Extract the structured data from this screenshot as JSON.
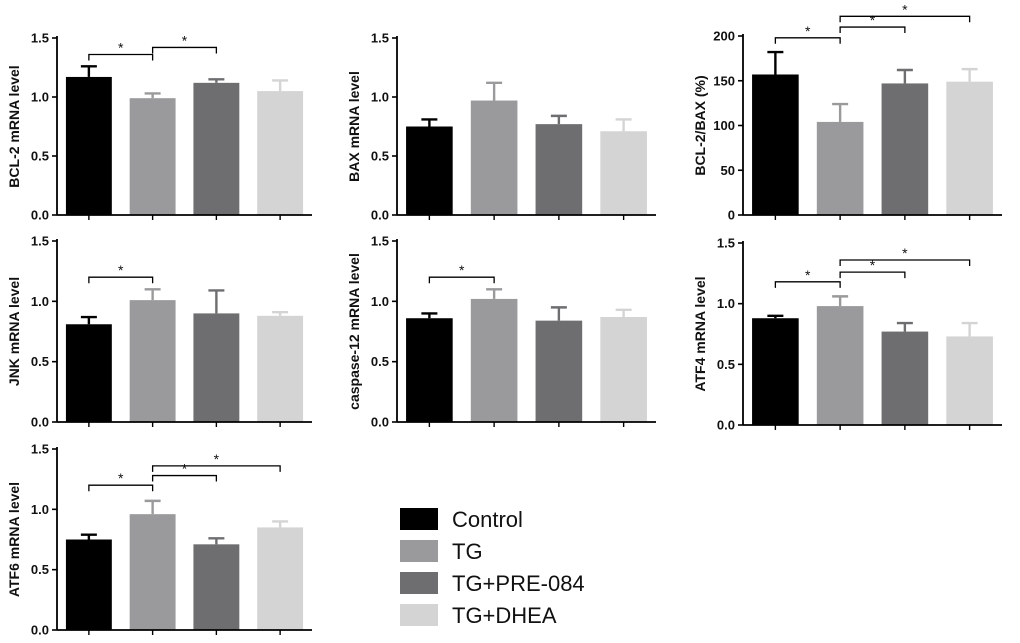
{
  "groups": [
    {
      "name": "Control",
      "color": "#000000"
    },
    {
      "name": "TG",
      "color": "#9a9a9c"
    },
    {
      "name": "TG+PRE-084",
      "color": "#6e6e70"
    },
    {
      "name": "TG+DHEA",
      "color": "#d4d4d4"
    }
  ],
  "chart_data": [
    {
      "type": "bar",
      "ylabel": "BCL-2 mRNA level",
      "ylim": [
        0,
        1.5
      ],
      "yticks": [
        "0.0",
        "0.5",
        "1.0",
        "1.5"
      ],
      "series": [
        {
          "values": [
            1.17,
            0.99,
            1.12,
            1.05
          ],
          "errors": [
            0.09,
            0.04,
            0.03,
            0.09
          ]
        }
      ],
      "significance": [
        {
          "from": 0,
          "to": 1,
          "label": "*",
          "level": 1.36
        },
        {
          "from": 1,
          "to": 2,
          "label": "*",
          "level": 1.42
        }
      ]
    },
    {
      "type": "bar",
      "ylabel": "BAX mRNA level",
      "ylim": [
        0,
        1.5
      ],
      "yticks": [
        "0.0",
        "0.5",
        "1.0",
        "1.5"
      ],
      "series": [
        {
          "values": [
            0.75,
            0.97,
            0.77,
            0.71
          ],
          "errors": [
            0.06,
            0.15,
            0.07,
            0.1
          ]
        }
      ],
      "significance": []
    },
    {
      "type": "bar",
      "ylabel": "BCL-2/BAX (%)",
      "ylim": [
        0,
        200
      ],
      "yticks": [
        "0",
        "50",
        "100",
        "150",
        "200"
      ],
      "series": [
        {
          "values": [
            157,
            104,
            147,
            149
          ],
          "errors": [
            25,
            20,
            15,
            14
          ]
        }
      ],
      "significance": [
        {
          "from": 0,
          "to": 1,
          "label": "*",
          "level": 198
        },
        {
          "from": 1,
          "to": 2,
          "label": "*",
          "level": 210
        },
        {
          "from": 1,
          "to": 3,
          "label": "*",
          "level": 222
        }
      ]
    },
    {
      "type": "bar",
      "ylabel": "JNK mRNA level",
      "ylim": [
        0,
        1.5
      ],
      "yticks": [
        "0.0",
        "0.5",
        "1.0",
        "1.5"
      ],
      "series": [
        {
          "values": [
            0.81,
            1.01,
            0.9,
            0.88
          ],
          "errors": [
            0.06,
            0.09,
            0.19,
            0.03
          ]
        }
      ],
      "significance": [
        {
          "from": 0,
          "to": 1,
          "label": "*",
          "level": 1.2
        }
      ]
    },
    {
      "type": "bar",
      "ylabel": "caspase-12 mRNA level",
      "ylim": [
        0,
        1.5
      ],
      "yticks": [
        "0.0",
        "0.5",
        "1.0",
        "1.5"
      ],
      "series": [
        {
          "values": [
            0.86,
            1.02,
            0.84,
            0.87
          ],
          "errors": [
            0.04,
            0.08,
            0.11,
            0.06
          ]
        }
      ],
      "significance": [
        {
          "from": 0,
          "to": 1,
          "label": "*",
          "level": 1.2
        }
      ]
    },
    {
      "type": "bar",
      "ylabel": "ATF4 mRNA level",
      "ylim": [
        0,
        1.5
      ],
      "yticks": [
        "0.0",
        "0.5",
        "1.0",
        "1.5"
      ],
      "series": [
        {
          "values": [
            0.88,
            0.98,
            0.77,
            0.73
          ],
          "errors": [
            0.02,
            0.08,
            0.07,
            0.11
          ]
        }
      ],
      "significance": [
        {
          "from": 0,
          "to": 1,
          "label": "*",
          "level": 1.18
        },
        {
          "from": 1,
          "to": 2,
          "label": "*",
          "level": 1.26
        },
        {
          "from": 1,
          "to": 3,
          "label": "*",
          "level": 1.36
        }
      ]
    },
    {
      "type": "bar",
      "ylabel": "ATF6 mRNA level",
      "ylim": [
        0,
        1.5
      ],
      "yticks": [
        "0.0",
        "0.5",
        "1.0",
        "1.5"
      ],
      "series": [
        {
          "values": [
            0.75,
            0.96,
            0.71,
            0.85
          ],
          "errors": [
            0.04,
            0.11,
            0.05,
            0.05
          ]
        }
      ],
      "significance": [
        {
          "from": 0,
          "to": 1,
          "label": "*",
          "level": 1.2
        },
        {
          "from": 1,
          "to": 2,
          "label": "*",
          "level": 1.28
        },
        {
          "from": 1,
          "to": 3,
          "label": "*",
          "level": 1.36
        }
      ]
    }
  ]
}
